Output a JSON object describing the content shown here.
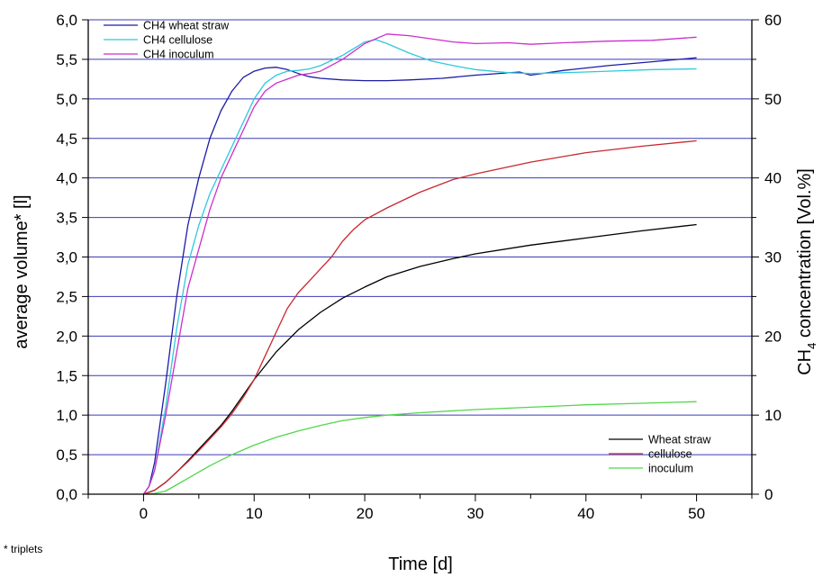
{
  "chart_data": {
    "type": "line",
    "xlabel": "Time [d]",
    "ylabel_left": "average volume* [l]",
    "ylabel_right_parts": {
      "base": "CH",
      "sub": "4",
      "rest": " concentration [Vol.%]"
    },
    "xlim": [
      -5,
      55
    ],
    "ylim_left": [
      0,
      6.0
    ],
    "ylim_right": [
      0,
      60
    ],
    "x_ticks": [
      "0",
      "10",
      "20",
      "30",
      "40",
      "50"
    ],
    "y_left_ticks": [
      "0,0",
      "0,5",
      "1,0",
      "1,5",
      "2,0",
      "2,5",
      "3,0",
      "3,5",
      "4,0",
      "4,5",
      "5,0",
      "5,5",
      "6,0"
    ],
    "y_right_ticks": [
      "0",
      "10",
      "20",
      "30",
      "40",
      "50",
      "60"
    ],
    "grid": "horizontal",
    "footnote": "* triplets",
    "legends": [
      {
        "placement": "top-left",
        "entries": [
          "CH4 wheat straw",
          "CH4 cellulose",
          "CH4 inoculum"
        ]
      },
      {
        "placement": "bottom-right",
        "entries": [
          "Wheat straw",
          "cellulose",
          "inoculum"
        ]
      }
    ],
    "series": [
      {
        "name": "CH4 wheat straw",
        "axis": "right",
        "color": "#1c1ca6",
        "x": [
          0,
          0.5,
          1,
          2,
          3,
          4,
          5,
          6,
          7,
          8,
          9,
          10,
          11,
          12,
          13,
          14,
          15,
          16,
          18,
          20,
          22,
          24,
          27,
          30,
          34,
          35,
          38,
          42,
          46,
          50
        ],
        "y": [
          0,
          1,
          4,
          14,
          25,
          34,
          40,
          45,
          48.5,
          51,
          52.7,
          53.5,
          53.9,
          54,
          53.7,
          53.2,
          52.8,
          52.6,
          52.4,
          52.3,
          52.3,
          52.4,
          52.6,
          53,
          53.4,
          53,
          53.6,
          54.2,
          54.7,
          55.2
        ]
      },
      {
        "name": "CH4 cellulose",
        "axis": "right",
        "color": "#2fc9db",
        "x": [
          0,
          0.5,
          1,
          2,
          3,
          4,
          5,
          6,
          7,
          8,
          9,
          10,
          11,
          12,
          13,
          14,
          15,
          16,
          18,
          20,
          21,
          22,
          24,
          26,
          28,
          30,
          33,
          35,
          38,
          42,
          46,
          50
        ],
        "y": [
          0,
          1,
          3,
          11,
          21,
          29,
          34,
          38,
          41,
          44,
          47,
          50,
          52,
          53,
          53.5,
          53.6,
          53.8,
          54.2,
          55.5,
          57.2,
          57.5,
          57,
          55.8,
          54.8,
          54.2,
          53.7,
          53.3,
          53.2,
          53.3,
          53.5,
          53.7,
          53.8
        ]
      },
      {
        "name": "CH4 inoculum",
        "axis": "right",
        "color": "#cc2fcc",
        "x": [
          0,
          0.5,
          1,
          2,
          3,
          4,
          5,
          6,
          7,
          8,
          9,
          10,
          11,
          12,
          13,
          14,
          15,
          16,
          18,
          20,
          22,
          24,
          26,
          28,
          30,
          33,
          35,
          38,
          42,
          46,
          50
        ],
        "y": [
          0,
          1,
          3,
          10,
          18,
          26,
          31,
          36,
          40,
          43,
          46,
          49,
          51,
          52,
          52.5,
          53,
          53.2,
          53.5,
          55,
          57,
          58.2,
          58,
          57.6,
          57.2,
          57,
          57.1,
          56.9,
          57.1,
          57.3,
          57.4,
          57.8
        ]
      },
      {
        "name": "Wheat straw",
        "axis": "left",
        "color": "#000000",
        "x": [
          0,
          1,
          2,
          3,
          4,
          5,
          6,
          7,
          8,
          9,
          10,
          12,
          14,
          16,
          18,
          20,
          22,
          25,
          28,
          30,
          35,
          40,
          45,
          50
        ],
        "y": [
          0,
          0.05,
          0.15,
          0.28,
          0.42,
          0.57,
          0.72,
          0.87,
          1.05,
          1.25,
          1.45,
          1.8,
          2.08,
          2.3,
          2.48,
          2.62,
          2.75,
          2.88,
          2.98,
          3.04,
          3.15,
          3.24,
          3.33,
          3.41
        ]
      },
      {
        "name": "cellulose",
        "axis": "left",
        "color": "#c8282d",
        "x": [
          0,
          1,
          2,
          3,
          4,
          5,
          6,
          7,
          8,
          9,
          10,
          11,
          12,
          13,
          14,
          15,
          16,
          17,
          18,
          19,
          20,
          22,
          25,
          28,
          30,
          35,
          40,
          45,
          50
        ],
        "y": [
          0,
          0.05,
          0.15,
          0.28,
          0.41,
          0.55,
          0.7,
          0.85,
          1.02,
          1.22,
          1.45,
          1.75,
          2.05,
          2.35,
          2.55,
          2.7,
          2.85,
          3.0,
          3.2,
          3.35,
          3.47,
          3.62,
          3.82,
          3.98,
          4.05,
          4.2,
          4.32,
          4.4,
          4.47
        ]
      },
      {
        "name": "inoculum",
        "axis": "left",
        "color": "#52d64a",
        "x": [
          0,
          1,
          2,
          3,
          4,
          5,
          6,
          7,
          8,
          10,
          12,
          14,
          16,
          18,
          20,
          22,
          25,
          30,
          35,
          40,
          45,
          50
        ],
        "y": [
          0,
          0.01,
          0.04,
          0.12,
          0.2,
          0.28,
          0.36,
          0.43,
          0.5,
          0.62,
          0.72,
          0.8,
          0.87,
          0.93,
          0.97,
          1.0,
          1.03,
          1.07,
          1.1,
          1.13,
          1.15,
          1.17
        ]
      }
    ]
  }
}
